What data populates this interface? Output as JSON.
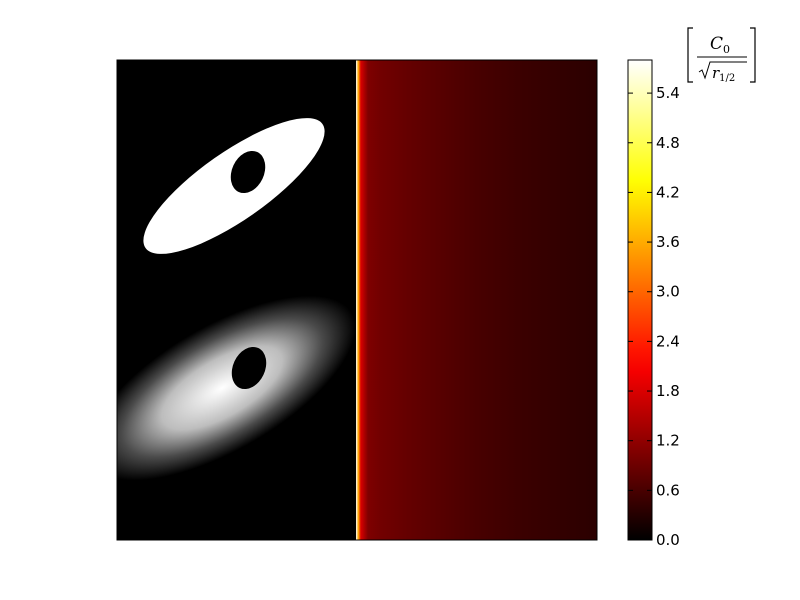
{
  "chart_data": {
    "type": "heatmap",
    "title": "",
    "xlabel": "",
    "ylabel": "",
    "panels": [
      {
        "name": "mask",
        "description": "binary ellipse region with elliptical hole"
      },
      {
        "name": "smoothed",
        "description": "smoothed elliptical intensity with hole"
      },
      {
        "name": "field",
        "description": "hot colormap field decreasing away from the left edge"
      }
    ],
    "colormap": "hot",
    "colorbar": {
      "vmin": 0.0,
      "vmax": 5.8,
      "ticks": [
        0.0,
        0.6,
        1.2,
        1.8,
        2.4,
        3.0,
        3.6,
        4.2,
        4.8,
        5.4
      ],
      "tick_labels": [
        "0.0",
        "0.6",
        "1.2",
        "1.8",
        "2.4",
        "3.0",
        "3.6",
        "4.2",
        "4.8",
        "5.4"
      ],
      "units_numerator": "C",
      "units_numerator_sub": "0",
      "units_denominator": "r",
      "units_denominator_sub": "1/2"
    },
    "field_profile": {
      "x_fraction": [
        0.0,
        0.01,
        0.02,
        0.05,
        0.1,
        0.2,
        0.35,
        0.5,
        0.7,
        1.0
      ],
      "value": [
        5.8,
        3.6,
        1.8,
        1.05,
        0.95,
        0.85,
        0.72,
        0.6,
        0.48,
        0.36
      ]
    },
    "grid": false,
    "legend": "none"
  }
}
